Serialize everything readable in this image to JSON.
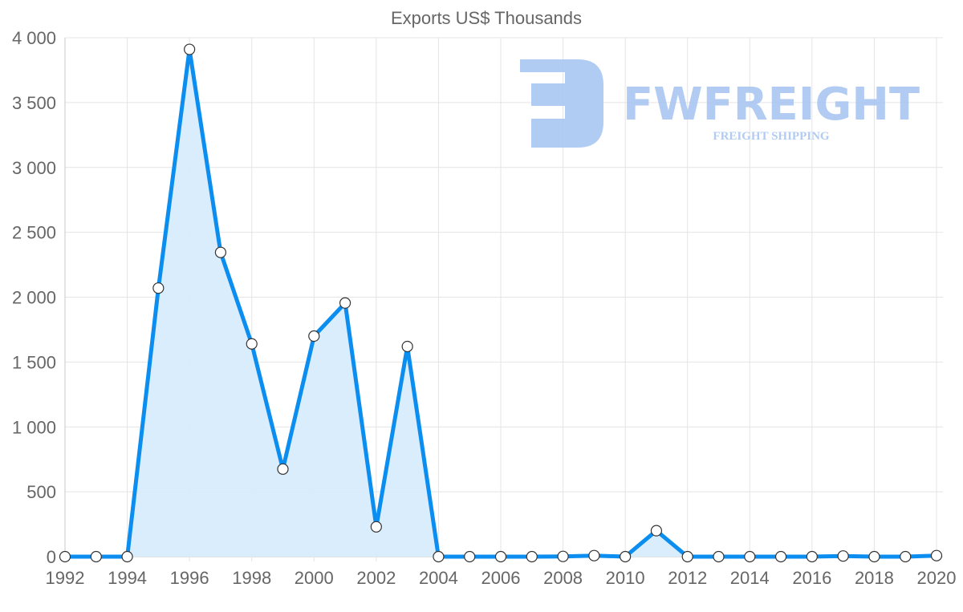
{
  "chart_data": {
    "type": "area",
    "title": "Exports US$ Thousands",
    "xlabel": "",
    "ylabel": "",
    "x": [
      1992,
      1993,
      1994,
      1995,
      1996,
      1997,
      1998,
      1999,
      2000,
      2001,
      2002,
      2003,
      2004,
      2005,
      2006,
      2007,
      2008,
      2009,
      2010,
      2011,
      2012,
      2013,
      2014,
      2015,
      2016,
      2017,
      2018,
      2019,
      2020
    ],
    "series": [
      {
        "name": "Exports US$ Thousands",
        "values": [
          0,
          0,
          0,
          2070,
          3910,
          2345,
          1640,
          675,
          1700,
          1955,
          230,
          1620,
          0,
          0,
          0,
          0,
          2,
          8,
          0,
          200,
          0,
          0,
          0,
          0,
          0,
          5,
          0,
          0,
          8
        ]
      }
    ],
    "ylim": [
      0,
      4000
    ],
    "xlim": [
      1992,
      2020
    ],
    "y_ticks": [
      "0",
      "500",
      "1 000",
      "1 500",
      "2 000",
      "2 500",
      "3 000",
      "3 500",
      "4 000"
    ],
    "y_tick_values": [
      0,
      500,
      1000,
      1500,
      2000,
      2500,
      3000,
      3500,
      4000
    ],
    "x_ticks": [
      "1992",
      "1994",
      "1996",
      "1998",
      "2000",
      "2002",
      "2004",
      "2006",
      "2008",
      "2010",
      "2012",
      "2014",
      "2016",
      "2018",
      "2020"
    ],
    "grid": true,
    "legend": "none",
    "line_color": "#0b8ef0",
    "fill_color": "#d8ecfc",
    "marker_fill": "#ffffff",
    "marker_stroke": "#333333"
  },
  "watermark": {
    "brand": "FWFREIGHT",
    "tagline": "FREIGHT SHIPPING",
    "color": "#a9c6f2"
  }
}
